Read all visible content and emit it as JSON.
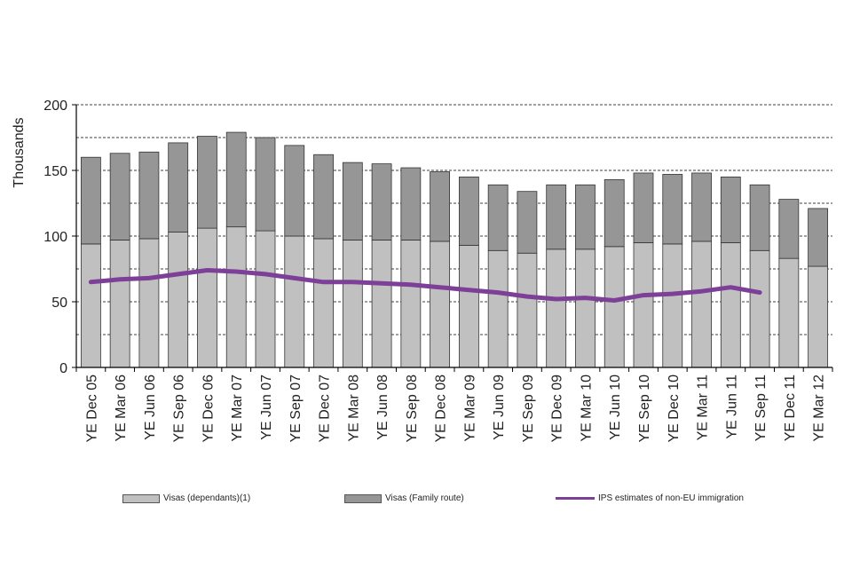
{
  "chart_data": {
    "type": "bar",
    "ylabel": "Thousands",
    "ylim": [
      0,
      200
    ],
    "yticks": [
      0,
      50,
      100,
      150,
      200
    ],
    "categories": [
      "YE Dec 05",
      "YE Mar 06",
      "YE Jun 06",
      "YE Sep 06",
      "YE Dec 06",
      "YE Mar 07",
      "YE Jun 07",
      "YE Sep 07",
      "YE Dec 07",
      "YE Mar 08",
      "YE Jun 08",
      "YE Sep 08",
      "YE Dec 08",
      "YE Mar 09",
      "YE Jun 09",
      "YE Sep 09",
      "YE Dec 09",
      "YE Mar 10",
      "YE Jun 10",
      "YE Sep 10",
      "YE Dec 10",
      "YE Mar 11",
      "YE Jun 11",
      "YE Sep 11",
      "YE Dec 11",
      "YE Mar 12"
    ],
    "series": [
      {
        "name": "Visas (dependants)(1)",
        "kind": "stacked-bar",
        "color": "#c0c0c0",
        "values": [
          94,
          97,
          98,
          103,
          106,
          107,
          104,
          100,
          98,
          97,
          97,
          97,
          96,
          93,
          89,
          87,
          90,
          90,
          92,
          95,
          94,
          96,
          95,
          89,
          83,
          77
        ]
      },
      {
        "name": "Visas (Family route)",
        "kind": "stacked-bar",
        "color": "#969696",
        "values": [
          66,
          66,
          66,
          68,
          70,
          72,
          71,
          69,
          64,
          59,
          58,
          55,
          53,
          52,
          50,
          47,
          49,
          49,
          51,
          53,
          53,
          52,
          50,
          50,
          45,
          44
        ]
      },
      {
        "name": "IPS estimates of non-EU immigration",
        "kind": "line",
        "color": "#7d3f98",
        "values": [
          65,
          67,
          68,
          71,
          74,
          73,
          71,
          68,
          65,
          65,
          64,
          63,
          61,
          59,
          57,
          54,
          52,
          53,
          51,
          55,
          56,
          58,
          61,
          57,
          null,
          null
        ]
      }
    ]
  },
  "legend": {
    "dependants": "Visas (dependants)(1)",
    "family": "Visas (Family route)",
    "ips": "IPS estimates of non-EU immigration"
  }
}
